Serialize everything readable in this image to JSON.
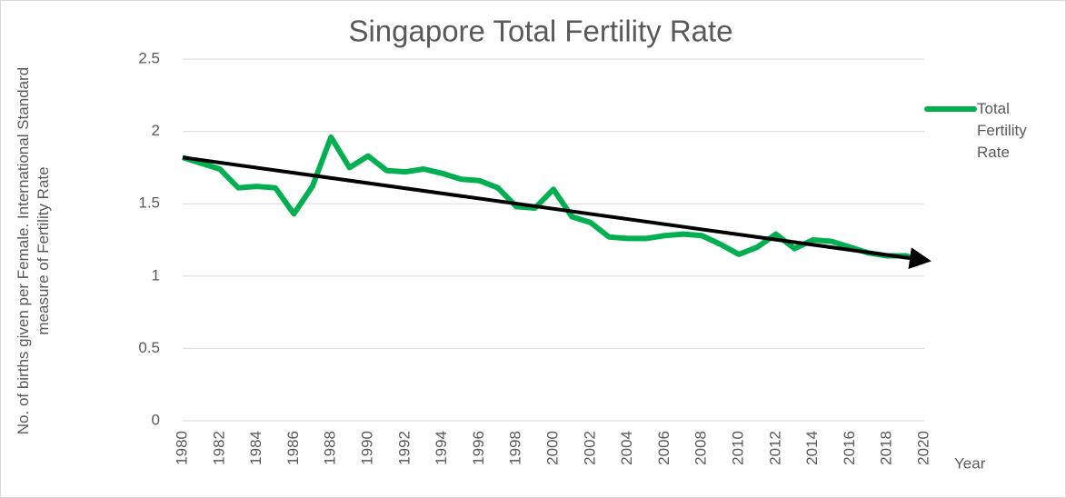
{
  "chart_data": {
    "type": "line",
    "title": "Singapore Total Fertility Rate",
    "y_label": "No. of births given per Female. International Standard measure of Fertility Rate",
    "x_label": "Year",
    "x": [
      1980,
      1981,
      1982,
      1983,
      1984,
      1985,
      1986,
      1987,
      1988,
      1989,
      1990,
      1991,
      1992,
      1993,
      1994,
      1995,
      1996,
      1997,
      1998,
      1999,
      2000,
      2001,
      2002,
      2003,
      2004,
      2005,
      2006,
      2007,
      2008,
      2009,
      2010,
      2011,
      2012,
      2013,
      2014,
      2015,
      2016,
      2017,
      2018,
      2019,
      2020
    ],
    "series": [
      {
        "name": "Total Fertility Rate",
        "color": "#00b050",
        "values": [
          1.82,
          1.78,
          1.74,
          1.61,
          1.62,
          1.61,
          1.43,
          1.62,
          1.96,
          1.75,
          1.83,
          1.73,
          1.72,
          1.74,
          1.71,
          1.67,
          1.66,
          1.61,
          1.48,
          1.47,
          1.6,
          1.41,
          1.37,
          1.27,
          1.26,
          1.26,
          1.28,
          1.29,
          1.28,
          1.22,
          1.15,
          1.2,
          1.29,
          1.19,
          1.25,
          1.24,
          1.2,
          1.16,
          1.14,
          1.14,
          1.1
        ]
      }
    ],
    "trendline": {
      "color": "#000000",
      "x": [
        1980,
        2020
      ],
      "values": [
        1.82,
        1.11
      ]
    },
    "xlim": [
      1980,
      2020
    ],
    "xticks": [
      1980,
      1982,
      1984,
      1986,
      1988,
      1990,
      1992,
      1994,
      1996,
      1998,
      2000,
      2002,
      2004,
      2006,
      2008,
      2010,
      2012,
      2014,
      2016,
      2018,
      2020
    ],
    "ylim": [
      0,
      2.5
    ],
    "yticks": [
      0,
      0.5,
      1,
      1.5,
      2,
      2.5
    ],
    "grid": true,
    "legend": "right"
  }
}
